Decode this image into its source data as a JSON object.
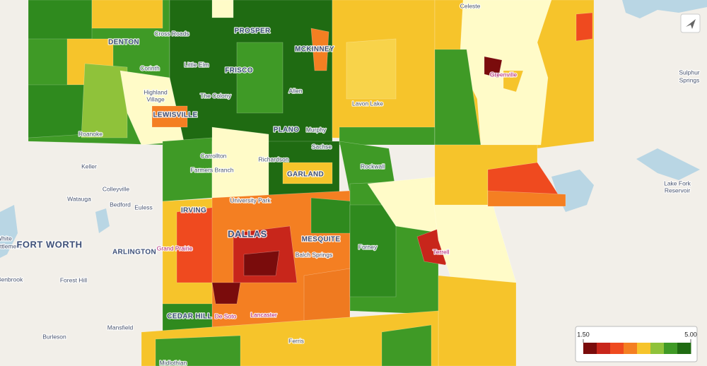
{
  "places": [
    "Celeste",
    "DENTON",
    "Cross Roads",
    "PROSPER",
    "MCKINNEY",
    "Corinth",
    "Little Elm",
    "FRISCO",
    "Greenville",
    "Sulphur",
    "Springs",
    "Highland",
    "Village",
    "The Colony",
    "Allen",
    "Lavon Lake",
    "LEWISVILLE",
    "PLANO",
    "Murphy",
    "Roanoke",
    "Sachse",
    "Carrollton",
    "Richardson",
    "Keller",
    "Farmers Branch",
    "GARLAND",
    "Rockwall",
    "Colleyville",
    "Watauga",
    "Bedford",
    "Euless",
    "University Park",
    "Lake Fork",
    "Reservoir",
    "IRVING",
    "DALLAS",
    "MESQUITE",
    "Forney",
    "White",
    "Settlement",
    "FORT WORTH",
    "ARLINGTON",
    "Grand Prairie",
    "Balch Springs",
    "Terrell",
    "Forest Hill",
    "Benbrook",
    "CEDAR HILL",
    "De Soto",
    "Lancaster",
    "Mansfield",
    "Burleson",
    "Ferris",
    "Midlothian"
  ],
  "legend": {
    "min": {
      "value": 1.5,
      "label": "1.50"
    },
    "max": {
      "value": 5,
      "label": "5.00"
    },
    "colors": [
      "#7a0c0c",
      "#c8261b",
      "#ef4a1f",
      "#f47f22",
      "#f6c42b",
      "#8fc23a",
      "#3f9a26",
      "#1f6b12"
    ]
  }
}
